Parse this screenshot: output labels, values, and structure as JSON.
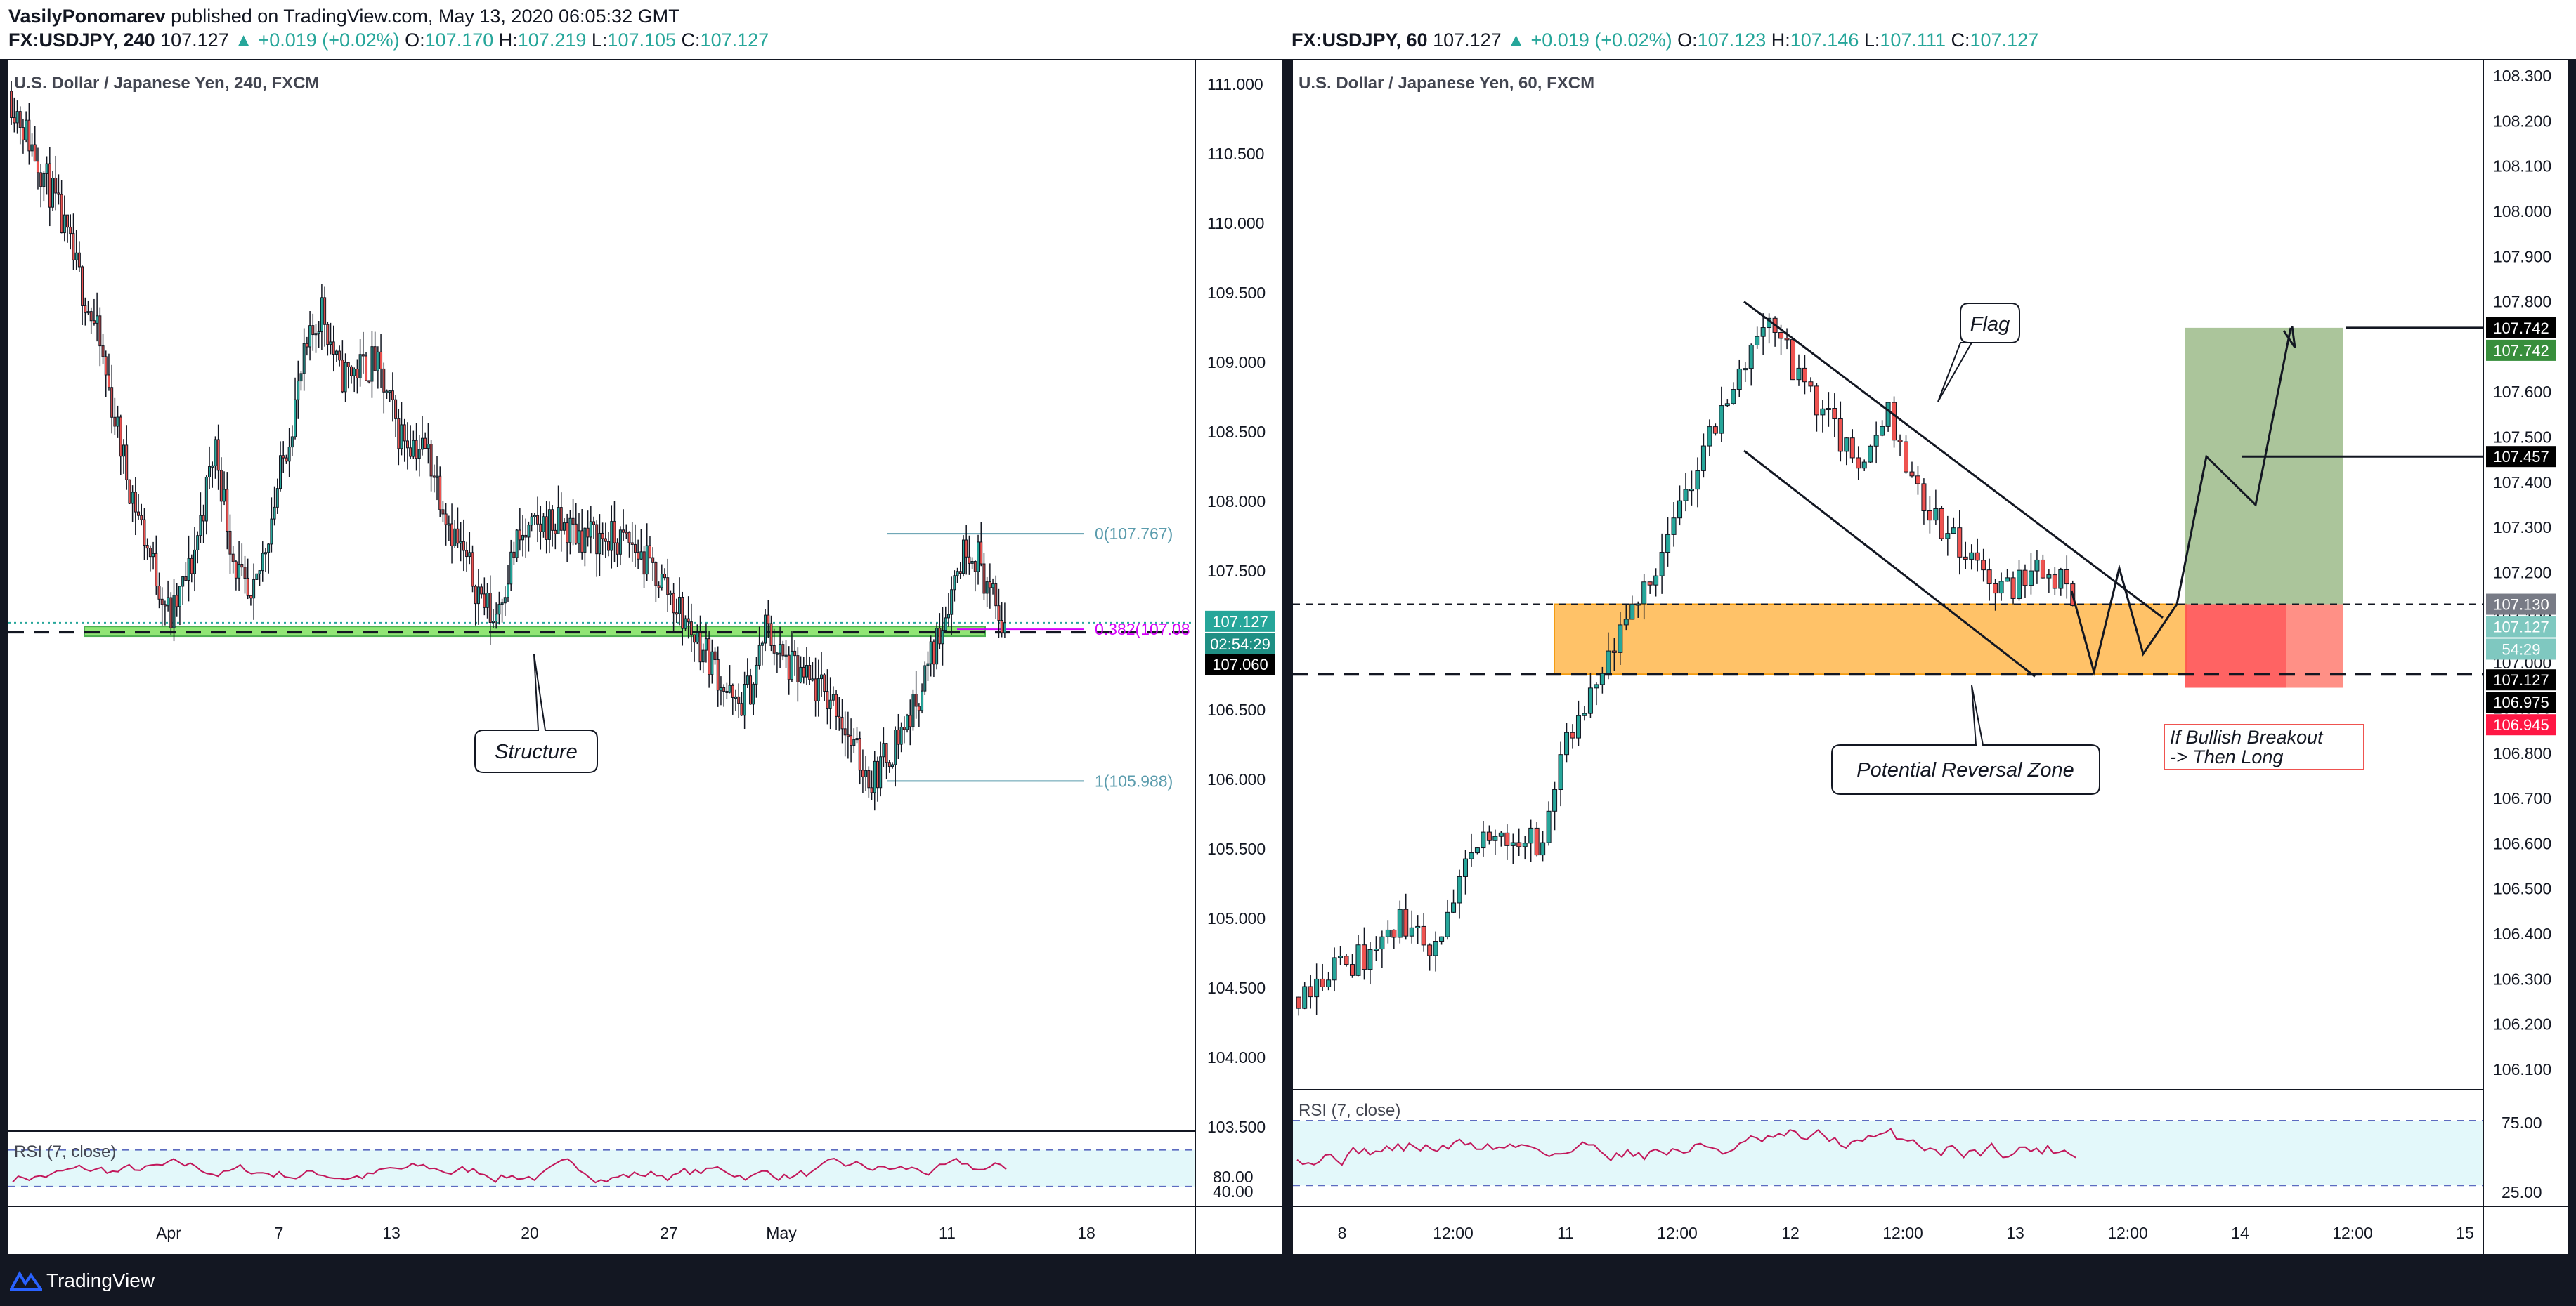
{
  "publish": {
    "author": "VasilyPonomarev",
    "text": "published on TradingView.com, May 13, 2020 06:05:32 GMT"
  },
  "footer": {
    "brand": "TradingView"
  },
  "colors": {
    "up": "#26a69a",
    "down": "#ef5350",
    "green_zone": "#7ee05d",
    "orange_zone": "#ffb74d",
    "fib": "#5b9cad",
    "rsi": "#c2185b",
    "target_green": "#8fb27a",
    "stop_red": "#ff5252"
  },
  "left_panel": {
    "header": {
      "symbol": "FX:USDJPY, 240",
      "price": "107.127",
      "change": "▲ +0.019 (+0.02%)",
      "o_label": "O:",
      "o": "107.170",
      "h_label": "H:",
      "h": "107.219",
      "l_label": "L:",
      "l": "107.105",
      "c_label": "C:",
      "c": "107.127"
    },
    "title": "U.S. Dollar / Japanese Yen, 240, FXCM",
    "price_badges": [
      {
        "text": "107.127",
        "value": 107.127,
        "style": "teal"
      },
      {
        "text": "02:54:29",
        "value": 107.1,
        "style": "teal-dark"
      },
      {
        "text": "107.060",
        "value": 107.06,
        "style": "black"
      }
    ],
    "annotations": {
      "structure": "Structure"
    },
    "fib_labels": {
      "top": "0(107.767)",
      "mid": "0.382(107.08",
      "bottom": "1(105.988)"
    }
  },
  "right_panel": {
    "header": {
      "symbol": "FX:USDJPY, 60",
      "price": "107.127",
      "change": "▲ +0.019 (+0.02%)",
      "o_label": "O:",
      "o": "107.123",
      "h_label": "H:",
      "h": "107.146",
      "l_label": "L:",
      "l": "107.111",
      "c_label": "C:",
      "c": "107.127"
    },
    "title": "U.S. Dollar / Japanese Yen, 60, FXCM",
    "annotations": {
      "flag": "Flag",
      "prz": "Potential Reversal Zone",
      "breakout_line1": "If Bullish Breakout",
      "breakout_line2": "-> Then Long"
    },
    "price_badges": [
      {
        "text": "107.742",
        "value": 107.742,
        "style": "black"
      },
      {
        "text": "107.742",
        "value": 107.742,
        "style": "green"
      },
      {
        "text": "107.457",
        "value": 107.457,
        "style": "black"
      },
      {
        "text": "107.130",
        "value": 107.13,
        "style": "gray"
      },
      {
        "text": "107.127",
        "value": 107.127,
        "style": "teal-light"
      },
      {
        "text": "54:29",
        "value": 107.127,
        "style": "teal-light"
      },
      {
        "text": "107.127",
        "value": 107.127,
        "style": "black"
      },
      {
        "text": "106.975",
        "value": 106.975,
        "style": "black"
      },
      {
        "text": "106.945",
        "value": 106.945,
        "style": "red"
      }
    ]
  },
  "chart_data": [
    {
      "type": "candlestick",
      "title": "U.S. Dollar / Japanese Yen, 240, FXCM",
      "y_ticks": [
        "111.000",
        "110.500",
        "110.000",
        "109.500",
        "109.000",
        "108.500",
        "108.000",
        "107.500",
        "107.000",
        "106.500",
        "106.000",
        "105.500",
        "105.000",
        "104.500",
        "104.000",
        "103.500"
      ],
      "ylim": [
        103.5,
        111.0
      ],
      "x_ticks": [
        "Apr",
        "7",
        "13",
        "20",
        "27",
        "May",
        "11",
        "18"
      ],
      "price_path": [
        [
          0,
          110.95
        ],
        [
          15,
          110.2
        ],
        [
          30,
          109.2
        ],
        [
          40,
          108.2
        ],
        [
          48,
          107.6
        ],
        [
          55,
          107.15
        ],
        [
          62,
          107.55
        ],
        [
          70,
          108.4
        ],
        [
          76,
          107.6
        ],
        [
          82,
          107.2
        ],
        [
          92,
          108.2
        ],
        [
          100,
          109.0
        ],
        [
          106,
          109.4
        ],
        [
          112,
          108.9
        ],
        [
          124,
          109.0
        ],
        [
          132,
          108.5
        ],
        [
          142,
          108.35
        ],
        [
          150,
          107.8
        ],
        [
          158,
          107.4
        ],
        [
          164,
          107.15
        ],
        [
          172,
          107.7
        ],
        [
          182,
          107.85
        ],
        [
          196,
          107.75
        ],
        [
          210,
          107.7
        ],
        [
          222,
          107.4
        ],
        [
          230,
          107.1
        ],
        [
          238,
          106.85
        ],
        [
          246,
          106.5
        ],
        [
          252,
          106.7
        ],
        [
          256,
          107.1
        ],
        [
          262,
          106.85
        ],
        [
          270,
          106.7
        ],
        [
          280,
          106.55
        ],
        [
          286,
          106.2
        ],
        [
          292,
          106.0
        ],
        [
          298,
          106.2
        ],
        [
          306,
          106.5
        ],
        [
          314,
          107.0
        ],
        [
          320,
          107.45
        ],
        [
          324,
          107.7
        ],
        [
          328,
          107.6
        ],
        [
          334,
          107.2
        ],
        [
          337,
          107.127
        ]
      ],
      "fibonacci": [
        {
          "level": "0",
          "price": 107.767
        },
        {
          "level": "0.382",
          "price": 107.08
        },
        {
          "level": "1",
          "price": 105.988
        }
      ],
      "support_zone": [
        107.03,
        107.1
      ],
      "rsi": {
        "label": "RSI (7, close)",
        "period": 7,
        "levels": [
          80,
          40
        ]
      }
    },
    {
      "type": "candlestick",
      "title": "U.S. Dollar / Japanese Yen, 60, FXCM",
      "y_ticks": [
        "108.300",
        "108.200",
        "108.100",
        "108.000",
        "107.900",
        "107.800",
        "107.700",
        "107.600",
        "107.500",
        "107.400",
        "107.300",
        "107.200",
        "107.100",
        "107.000",
        "106.900",
        "106.800",
        "106.700",
        "106.600",
        "106.500",
        "106.400",
        "106.300",
        "106.200",
        "106.100"
      ],
      "ylim": [
        106.1,
        108.3
      ],
      "x_ticks": [
        "8",
        "12:00",
        "11",
        "12:00",
        "12",
        "12:00",
        "13",
        "12:00",
        "14",
        "12:00",
        "15"
      ],
      "price_path": [
        [
          0,
          106.26
        ],
        [
          6,
          106.32
        ],
        [
          12,
          106.35
        ],
        [
          18,
          106.42
        ],
        [
          24,
          106.37
        ],
        [
          28,
          106.5
        ],
        [
          31,
          106.6
        ],
        [
          36,
          106.62
        ],
        [
          42,
          106.6
        ],
        [
          45,
          106.8
        ],
        [
          48,
          106.85
        ],
        [
          52,
          106.97
        ],
        [
          56,
          107.08
        ],
        [
          60,
          107.2
        ],
        [
          64,
          107.3
        ],
        [
          68,
          107.45
        ],
        [
          72,
          107.55
        ],
        [
          76,
          107.67
        ],
        [
          80,
          107.78
        ],
        [
          84,
          107.65
        ],
        [
          88,
          107.58
        ],
        [
          92,
          107.49
        ],
        [
          96,
          107.42
        ],
        [
          100,
          107.57
        ],
        [
          104,
          107.4
        ],
        [
          108,
          107.32
        ],
        [
          112,
          107.25
        ],
        [
          116,
          107.19
        ],
        [
          120,
          107.16
        ],
        [
          124,
          107.21
        ],
        [
          128,
          107.2
        ],
        [
          131,
          107.127
        ]
      ],
      "prz_zone": [
        106.975,
        107.13
      ],
      "flag_channel": {
        "upper": [
          [
            102,
            107.8
          ],
          [
            170,
            107.1
          ]
        ],
        "lower": [
          [
            102,
            107.47
          ],
          [
            150,
            106.97
          ]
        ]
      },
      "long_position": {
        "entry": 107.13,
        "target": 107.742,
        "stop": 106.945
      },
      "projection": [
        107.13,
        107.21,
        107.02,
        107.13,
        107.457,
        107.35,
        107.742
      ],
      "levels": [
        107.13,
        106.975,
        107.457,
        107.742
      ],
      "rsi": {
        "label": "RSI (7, close)",
        "period": 7,
        "levels": [
          75,
          25
        ]
      }
    }
  ]
}
